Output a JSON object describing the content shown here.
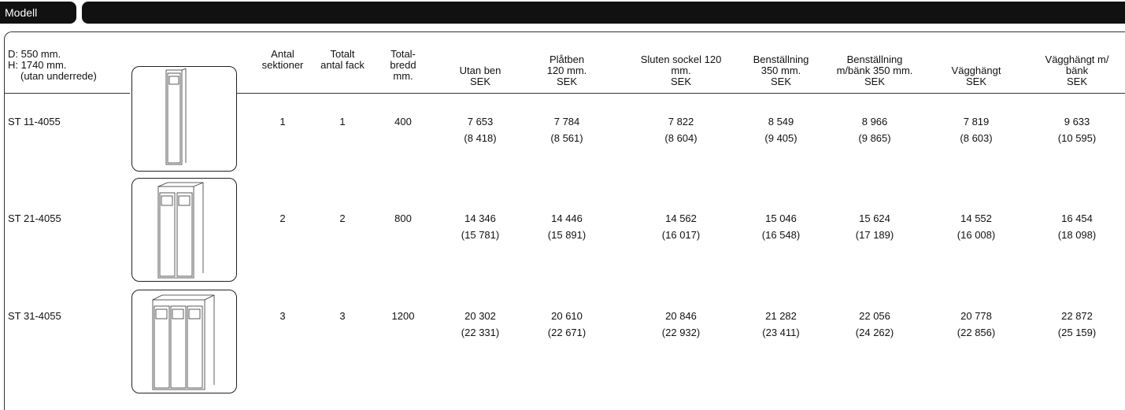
{
  "header": {
    "tab": "Modell"
  },
  "table": {
    "dimensions": [
      "D: 550 mm.",
      "H: 1740 mm.",
      "(utan underrede)"
    ],
    "columns": [
      [
        "Antal",
        "sektioner"
      ],
      [
        "Totalt",
        "antal fack"
      ],
      [
        "Total-",
        "bredd",
        "mm."
      ],
      [
        "Utan ben",
        "SEK"
      ],
      [
        "Plåtben",
        "120 mm.",
        "SEK"
      ],
      [
        "Sluten sockel 120",
        "mm.",
        "SEK"
      ],
      [
        "Benställning",
        "350 mm.",
        "SEK"
      ],
      [
        "Benställning",
        "m/bänk 350 mm.",
        "SEK"
      ],
      [
        "Vägghängt",
        "SEK"
      ],
      [
        "Vägghängt m/",
        "bänk",
        "SEK"
      ]
    ],
    "rows": [
      {
        "model": "ST 11-4055",
        "values": [
          "1",
          "1",
          "400"
        ],
        "prices": [
          [
            "7 653",
            "(8 418)"
          ],
          [
            "7 784",
            "(8 561)"
          ],
          [
            "7 822",
            "(8 604)"
          ],
          [
            "8 549",
            "(9 405)"
          ],
          [
            "8 966",
            "(9 865)"
          ],
          [
            "7 819",
            "(8 603)"
          ],
          [
            "9 633",
            "(10 595)"
          ]
        ]
      },
      {
        "model": "ST 21-4055",
        "values": [
          "2",
          "2",
          "800"
        ],
        "prices": [
          [
            "14 346",
            "(15 781)"
          ],
          [
            "14 446",
            "(15 891)"
          ],
          [
            "14 562",
            "(16 017)"
          ],
          [
            "15 046",
            "(16 548)"
          ],
          [
            "15 624",
            "(17 189)"
          ],
          [
            "14 552",
            "(16 008)"
          ],
          [
            "16 454",
            "(18 098)"
          ]
        ]
      },
      {
        "model": "ST 31-4055",
        "values": [
          "3",
          "3",
          "1200"
        ],
        "prices": [
          [
            "20 302",
            "(22 331)"
          ],
          [
            "20 610",
            "(22 671)"
          ],
          [
            "20 846",
            "(22 932)"
          ],
          [
            "21 282",
            "(23 411)"
          ],
          [
            "22 056",
            "(24 262)"
          ],
          [
            "20 778",
            "(22 856)"
          ],
          [
            "22 872",
            "(25 159)"
          ]
        ]
      }
    ]
  }
}
